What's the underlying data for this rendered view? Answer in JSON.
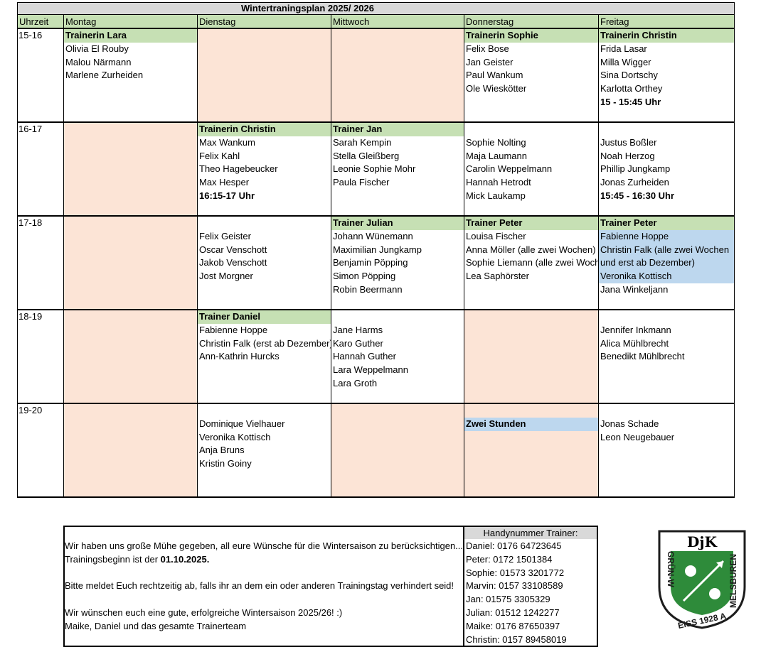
{
  "header": {
    "title": "Wintertraningsplan 2025/ 2026",
    "columns": [
      "Uhrzeit",
      "Montag",
      "Dienstag",
      "Mittwoch",
      "Donnerstag",
      "Freitag"
    ]
  },
  "schedule": {
    "rows": [
      {
        "time": "15-16",
        "cells": [
          {
            "trainer": "Trainerin Lara",
            "lines": [
              "Olivia El Rouby",
              "Malou Närmann",
              "Marlene Zurheiden"
            ]
          },
          {
            "shaded": true
          },
          {
            "shaded": true
          },
          {
            "trainer": "Trainerin Sophie",
            "lines": [
              "Felix Bose",
              "Jan Geister",
              "Paul Wankum",
              "Ole Wieskötter"
            ]
          },
          {
            "trainer": "Trainerin Christin",
            "lines": [
              "Frida Lasar",
              "Milla Wigger",
              "Sina Dortschy",
              "Karlotta Orthey",
              {
                "text": "15 - 15:45 Uhr",
                "bold": true
              }
            ]
          }
        ]
      },
      {
        "time": "16-17",
        "cells": [
          {
            "shaded": true
          },
          {
            "trainer": "Trainerin Christin",
            "lines": [
              "Max Wankum",
              "Felix Kahl",
              "Theo Hagebeucker",
              "Max Hesper",
              {
                "text": "16:15-17 Uhr",
                "bold": true
              }
            ]
          },
          {
            "trainer": "Trainer Jan",
            "lines": [
              "Sarah Kempin",
              "Stella Gleißberg",
              "Leonie Sophie Mohr",
              "Paula Fischer"
            ]
          },
          {
            "lines": [
              "Sophie Nolting",
              "Maja Laumann",
              "Carolin Weppelmann",
              "Hannah Hetrodt",
              "Mick Laukamp"
            ]
          },
          {
            "lines": [
              "Justus Boßler",
              "Noah Herzog",
              "Phillip Jungkamp",
              "Jonas Zurheiden",
              {
                "text": "15:45 - 16:30 Uhr",
                "bold": true
              }
            ]
          }
        ]
      },
      {
        "time": "17-18",
        "cells": [
          {
            "shaded": true
          },
          {
            "lines": [
              "Felix Geister",
              "Oscar Venschott",
              "Jakob Venschott",
              "Jost Morgner"
            ]
          },
          {
            "trainer": "Trainer Julian",
            "lines": [
              "Johann Wünemann",
              "Maximilian Jungkamp",
              "Benjamin Pöpping",
              "Simon Pöpping",
              "Robin Beermann"
            ]
          },
          {
            "trainer": "Trainer Peter",
            "lines": [
              "Louisa Fischer",
              "Anna Möller (alle zwei Wochen)",
              "Sophie Liemann (alle zwei Woch",
              "Lea Saphörster"
            ]
          },
          {
            "trainer": "Trainer Peter",
            "lines": [
              {
                "text": "Fabienne Hoppe",
                "highlight": true
              },
              {
                "text": "Christin Falk (alle zwei Wochen",
                "highlight": true
              },
              {
                "text": "und erst ab Dezember)",
                "highlight": true
              },
              {
                "text": "Veronika Kottisch",
                "highlight": true
              },
              "Jana Winkeljann"
            ]
          }
        ]
      },
      {
        "time": "18-19",
        "cells": [
          {
            "shaded": true
          },
          {
            "trainer": "Trainer Daniel",
            "lines": [
              "Fabienne Hoppe",
              "Christin Falk (erst ab Dezember)",
              "Ann-Kathrin Hurcks"
            ]
          },
          {
            "lines": [
              "Jane Harms",
              "Karo Guther",
              "Hannah Guther",
              "Lara Weppelmann",
              "Lara Groth"
            ]
          },
          {
            "shaded": true
          },
          {
            "lines": [
              "Jennifer Inkmann",
              "Alica Mühlbrecht",
              "Benedikt Mühlbrecht"
            ]
          }
        ]
      },
      {
        "time": "19-20",
        "cells": [
          {
            "shaded": true
          },
          {
            "lines": [
              "Dominique Vielhauer",
              "Veronika Kottisch",
              "Anja Bruns",
              "Kristin Goiny"
            ]
          },
          {
            "shaded": true
          },
          {
            "shaded": true,
            "lines": [
              {
                "text": "Zwei Stunden",
                "bold": true,
                "highlight": true
              }
            ]
          },
          {
            "lines": [
              "Jonas Schade",
              "Leon Neugebauer"
            ]
          }
        ]
      }
    ]
  },
  "message": {
    "lines": [
      "Wir haben uns große Mühe gegeben, all eure Wünsche für die Wintersaison zu berücksichtigen...",
      {
        "text": "Trainingsbeginn ist der",
        "bold": "01.10.2025."
      },
      null,
      "Bitte meldet Euch rechtzeitig ab, falls ihr an dem ein oder anderen Trainingstag verhindert seid!",
      null,
      "Wir wünschen euch eine gute, erfolgreiche Wintersaison 2025/26! :)",
      "Maike, Daniel und das gesamte Trainerteam"
    ]
  },
  "phones": {
    "title": "Handynummer Trainer:",
    "lines": [
      "Daniel: 0176 64723645",
      "Peter: 0172 1501384",
      "Sophie: 01573 3201772",
      "Marvin: 0157 33108589",
      "Jan: 01575 3305329",
      "Julian: 01512 1242277",
      "Maike: 0176 87650397",
      "Christin: 0157 89458019"
    ]
  },
  "logo": {
    "top": "DjK",
    "left": "GRÜN-W",
    "bottom": "EISS 1928 A",
    "right": "MELSBUREN"
  }
}
